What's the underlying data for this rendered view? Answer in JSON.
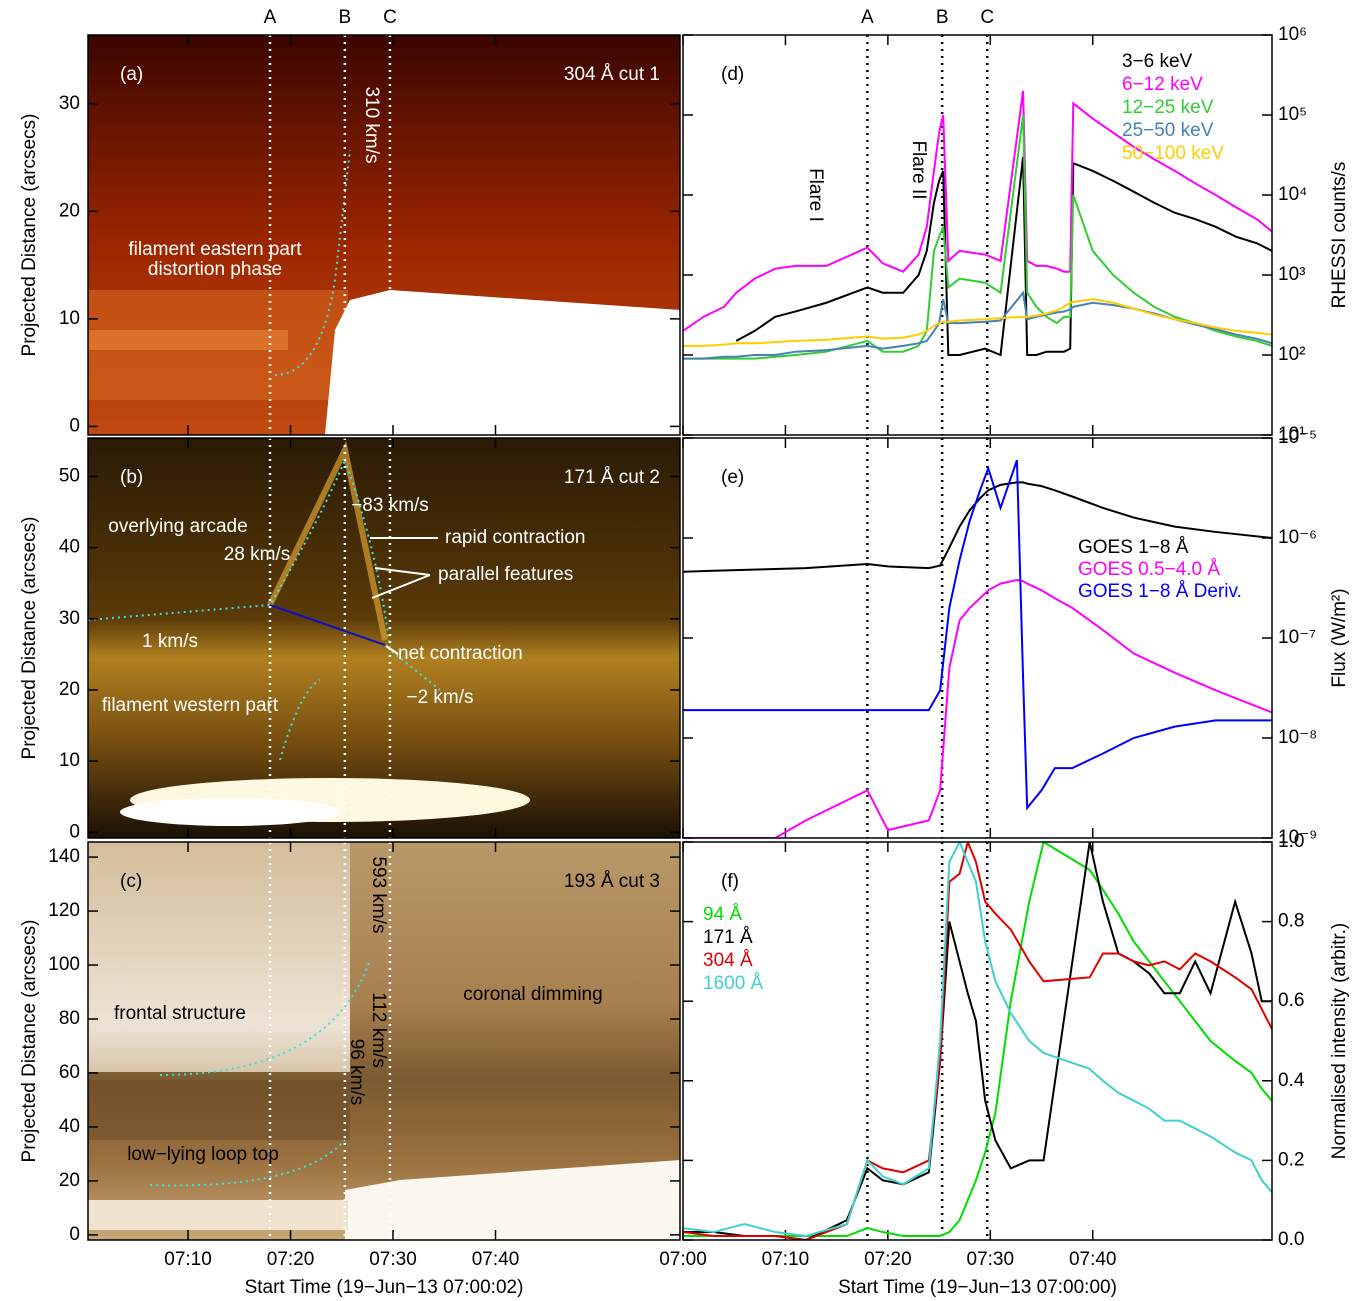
{
  "events": [
    {
      "value": 18.0,
      "label": "A"
    },
    {
      "value": 25.3,
      "label": "B"
    },
    {
      "value": 29.7,
      "label": "C"
    }
  ],
  "chart_data": [
    {
      "type": "image",
      "panel_label": "(a)",
      "title": "304 Å cut 1",
      "ylabel": "Projected Distance (arcsecs)",
      "xlim": [
        0.24,
        58.0
      ],
      "ylim": [
        -0.8,
        36.4
      ],
      "yticks": [
        0,
        10,
        20,
        30
      ],
      "annotations": [
        "310 km/s",
        "filament eastern part",
        "distortion phase"
      ]
    },
    {
      "type": "image",
      "panel_label": "(b)",
      "title": "171 Å cut 2",
      "ylabel": "Projected Distance (arcsecs)",
      "xlim": [
        0.24,
        58.0
      ],
      "ylim": [
        -0.8,
        55.4
      ],
      "yticks": [
        0,
        10,
        20,
        30,
        40,
        50
      ],
      "annotations": [
        "−83 km/s",
        "rapid contraction",
        "parallel features",
        "overlying arcade",
        "28 km/s",
        "1 km/s",
        "net contraction",
        "filament western part",
        "−2 km/s"
      ]
    },
    {
      "type": "image",
      "panel_label": "(c)",
      "title": "193 Å cut 3",
      "ylabel": "Projected Distance (arcsecs)",
      "xlim": [
        0.24,
        58.0
      ],
      "ylim": [
        -1.9,
        145.6
      ],
      "yticks": [
        0,
        20,
        40,
        60,
        80,
        100,
        120,
        140
      ],
      "xticks": [
        {
          "value": 10,
          "label": "07:10"
        },
        {
          "value": 20,
          "label": "07:20"
        },
        {
          "value": 30,
          "label": "07:30"
        },
        {
          "value": 40,
          "label": "07:40"
        }
      ],
      "xlabel": "Start Time (19−Jun−13 07:00:02)",
      "annotations": [
        "593 km/s",
        "112 km/s",
        "96 km/s",
        "frontal structure",
        "coronal dimming",
        "low−lying loop top"
      ]
    },
    {
      "type": "line",
      "panel_label": "(d)",
      "ylabel": "RHESSI counts/s",
      "log_y": true,
      "legend": "upper right",
      "xlim": [
        0,
        57.5
      ],
      "ylim": [
        10,
        1000000
      ],
      "yticks": [
        {
          "value": 10,
          "label": "10¹"
        },
        {
          "value": 100,
          "label": "10²"
        },
        {
          "value": 1000,
          "label": "10³"
        },
        {
          "value": 10000,
          "label": "10⁴"
        },
        {
          "value": 100000,
          "label": "10⁵"
        },
        {
          "value": 1000000,
          "label": "10⁶"
        }
      ],
      "annotations": [
        "Flare I",
        "Flare II"
      ],
      "x": [
        0,
        2,
        4,
        5.2,
        7,
        9,
        11,
        14,
        18.0,
        19.5,
        21.5,
        23,
        23.8,
        24.5,
        25,
        25.4,
        25.9,
        27,
        29.5,
        31,
        33.2,
        33.6,
        34.5,
        35.5,
        36.5,
        37.2,
        37.8,
        38.1,
        40,
        42,
        44,
        46,
        48,
        50,
        52,
        54,
        56,
        57.5
      ],
      "series": [
        {
          "name": "3−6 keV",
          "color": "#000000",
          "values": [
            null,
            null,
            null,
            150,
            200,
            300,
            350,
            450,
            700,
            600,
            600,
            1000,
            2000,
            8000,
            15000,
            20000,
            100,
            100,
            120,
            100,
            30000,
            100,
            100,
            110,
            110,
            110,
            120,
            25000,
            20000,
            15000,
            11000,
            8000,
            6000,
            5000,
            4000,
            3000,
            2500,
            2000
          ]
        },
        {
          "name": "6−12 keV",
          "color": "#ff00ff",
          "values": [
            200,
            300,
            400,
            600,
            900,
            1200,
            1300,
            1300,
            2200,
            1400,
            1100,
            1800,
            4000,
            20000,
            60000,
            100000,
            1500,
            2000,
            1800,
            1500,
            200000,
            1500,
            1300,
            1300,
            1200,
            1100,
            1100,
            140000,
            90000,
            60000,
            40000,
            28000,
            20000,
            14000,
            10000,
            7000,
            5000,
            3500
          ]
        },
        {
          "name": "12−25 keV",
          "color": "#33cc33",
          "values": [
            90,
            90,
            90,
            90,
            90,
            95,
            100,
            110,
            150,
            110,
            110,
            130,
            200,
            2000,
            3000,
            4000,
            700,
            900,
            800,
            600,
            100000,
            600,
            400,
            300,
            250,
            300,
            300,
            10000,
            2000,
            1000,
            600,
            400,
            300,
            250,
            200,
            170,
            150,
            130
          ]
        },
        {
          "name": "25−50 keV",
          "color": "#4682b4",
          "values": [
            90,
            90,
            95,
            95,
            100,
            100,
            110,
            115,
            130,
            120,
            130,
            140,
            150,
            200,
            250,
            500,
            250,
            250,
            260,
            270,
            600,
            280,
            300,
            320,
            340,
            350,
            370,
            400,
            450,
            420,
            380,
            330,
            280,
            240,
            210,
            180,
            160,
            140
          ]
        },
        {
          "name": "50−100 keV",
          "color": "#ffcc00",
          "values": [
            130,
            130,
            135,
            140,
            140,
            145,
            150,
            155,
            170,
            160,
            165,
            180,
            200,
            230,
            250,
            260,
            260,
            270,
            280,
            290,
            300,
            300,
            310,
            330,
            360,
            400,
            450,
            460,
            500,
            450,
            380,
            320,
            280,
            250,
            220,
            200,
            190,
            180
          ]
        }
      ]
    },
    {
      "type": "line",
      "panel_label": "(e)",
      "ylabel": "Flux (W/m²)",
      "log_y": true,
      "legend": "center right",
      "xlim": [
        0,
        57.5
      ],
      "ylim": [
        1e-09,
        1e-05
      ],
      "yticks": [
        {
          "value": 1e-09,
          "label": "10⁻⁹"
        },
        {
          "value": 1e-08,
          "label": "10⁻⁸"
        },
        {
          "value": 1e-07,
          "label": "10⁻⁷"
        },
        {
          "value": 1e-06,
          "label": "10⁻⁶"
        },
        {
          "value": 1e-05,
          "label": "10⁻⁵"
        }
      ],
      "x": [
        0,
        3,
        6,
        9,
        12,
        18,
        20,
        24,
        25.1,
        26,
        27,
        28,
        29,
        29.8,
        31,
        32.6,
        33.2,
        33.6,
        35,
        36.3,
        38,
        41,
        44,
        48,
        52,
        57.5
      ],
      "series": [
        {
          "name": "GOES 1−8 Å",
          "color": "#000000",
          "values": [
            4.6e-07,
            4.7e-07,
            4.8e-07,
            4.9e-07,
            5e-07,
            5.5e-07,
            5.2e-07,
            5e-07,
            5.3e-07,
            8e-07,
            1.3e-06,
            1.9e-06,
            2.5e-06,
            3e-06,
            3.4e-06,
            3.6e-06,
            3.6e-06,
            3.5e-06,
            3.3e-06,
            3e-06,
            2.6e-06,
            2e-06,
            1.6e-06,
            1.3e-06,
            1.15e-06,
            1e-06
          ]
        },
        {
          "name": "GOES 0.5−4.0 Å",
          "color": "#ff00ff",
          "values": [
            1e-09,
            1e-09,
            1e-09,
            1e-09,
            1.5e-09,
            3e-09,
            1.2e-09,
            1.5e-09,
            3e-09,
            5e-08,
            1.5e-07,
            2e-07,
            2.5e-07,
            3e-07,
            3.5e-07,
            3.8e-07,
            3.7e-07,
            3.5e-07,
            3e-07,
            2.5e-07,
            2e-07,
            1.2e-07,
            7e-08,
            4.5e-08,
            3e-08,
            1.8e-08
          ]
        },
        {
          "name": "GOES 1−8 Å Deriv.",
          "color": "#0000ff",
          "values": [
            1.9e-08,
            1.9e-08,
            1.9e-08,
            1.9e-08,
            1.9e-08,
            1.9e-08,
            1.9e-08,
            1.9e-08,
            3e-08,
            2e-07,
            6e-07,
            1.5e-06,
            3e-06,
            5e-06,
            2e-06,
            6e-06,
            4e-08,
            2e-09,
            3e-09,
            5e-09,
            5e-09,
            7e-09,
            1e-08,
            1.3e-08,
            1.5e-08,
            1.5e-08
          ]
        }
      ]
    },
    {
      "type": "line",
      "panel_label": "(f)",
      "ylabel": "Normalised intensity (arbitr.)",
      "log_y": false,
      "legend": "upper left",
      "xlim": [
        0,
        57.5
      ],
      "ylim": [
        0,
        1.0
      ],
      "yticks": [
        {
          "value": 0,
          "label": "0.0"
        },
        0.2,
        0.4,
        0.6,
        0.8,
        {
          "value": 1,
          "label": "1.0"
        }
      ],
      "xticks": [
        {
          "value": 0,
          "label": "07:00"
        },
        {
          "value": 10,
          "label": "07:10"
        },
        {
          "value": 20,
          "label": "07:20"
        },
        {
          "value": 30,
          "label": "07:30"
        },
        {
          "value": 40,
          "label": "07:40"
        }
      ],
      "xlabel": "Start Time (19−Jun−13 07:00:00)",
      "x": [
        0,
        3,
        6,
        9,
        12,
        16,
        18,
        19.5,
        21.5,
        24,
        25.1,
        26,
        27,
        27.8,
        28.6,
        29.5,
        30.5,
        32,
        33.8,
        35.2,
        39.7,
        41,
        42.5,
        44,
        45.5,
        47,
        48.5,
        50,
        51.5,
        53.9,
        55.5,
        56.5,
        57.5
      ],
      "series": [
        {
          "name": "94 Å",
          "color": "#00dd00",
          "values": [
            0.01,
            0.01,
            0.01,
            0.01,
            0.01,
            0.01,
            0.03,
            0.02,
            0.01,
            0.01,
            0.01,
            0.02,
            0.05,
            0.1,
            0.15,
            0.22,
            0.32,
            0.6,
            0.85,
            1.0,
            0.93,
            0.88,
            0.82,
            0.75,
            0.7,
            0.65,
            0.6,
            0.55,
            0.5,
            0.45,
            0.42,
            0.38,
            0.35
          ]
        },
        {
          "name": "171 Å",
          "color": "#000000",
          "values": [
            0.02,
            0.02,
            0.01,
            0.01,
            0.0,
            0.05,
            0.18,
            0.15,
            0.14,
            0.17,
            0.45,
            0.8,
            0.7,
            0.62,
            0.55,
            0.35,
            0.25,
            0.18,
            0.2,
            0.2,
            1.0,
            0.85,
            0.72,
            0.7,
            0.67,
            0.62,
            0.62,
            0.7,
            0.62,
            0.85,
            0.72,
            0.6,
            0.6
          ]
        },
        {
          "name": "304 Å",
          "color": "#e00000",
          "values": [
            0.02,
            0.01,
            0.01,
            0.01,
            0.0,
            0.04,
            0.2,
            0.18,
            0.17,
            0.2,
            0.45,
            0.9,
            0.92,
            1.0,
            0.95,
            0.85,
            0.82,
            0.78,
            0.7,
            0.65,
            0.66,
            0.72,
            0.72,
            0.7,
            0.69,
            0.7,
            0.68,
            0.72,
            0.7,
            0.66,
            0.63,
            0.58,
            0.53
          ]
        },
        {
          "name": "1600 Å",
          "color": "#40d0d0",
          "values": [
            0.03,
            0.02,
            0.04,
            0.02,
            0.01,
            0.04,
            0.2,
            0.16,
            0.14,
            0.18,
            0.5,
            0.95,
            1.0,
            0.95,
            0.9,
            0.75,
            0.65,
            0.57,
            0.5,
            0.47,
            0.43,
            0.4,
            0.37,
            0.35,
            0.33,
            0.3,
            0.3,
            0.28,
            0.26,
            0.22,
            0.2,
            0.15,
            0.12
          ]
        }
      ]
    }
  ]
}
